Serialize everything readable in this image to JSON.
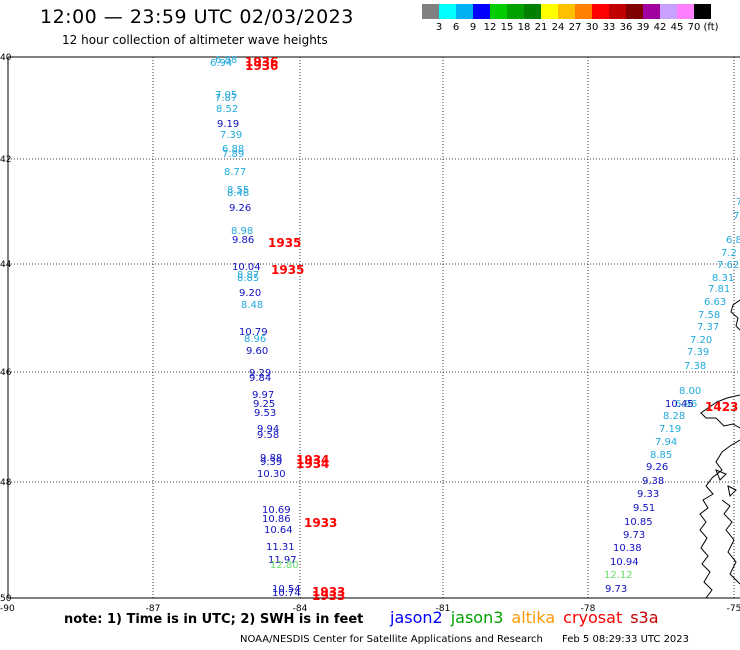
{
  "header": {
    "title": "12:00 — 23:59 UTC 02/03/2023",
    "subtitle": "12 hour collection of altimeter wave heights"
  },
  "legend": {
    "colors": [
      "#808080",
      "#00ffff",
      "#00b0f0",
      "#0000ff",
      "#00cc00",
      "#00a000",
      "#008000",
      "#ffff00",
      "#ffc000",
      "#ff8000",
      "#ff0000",
      "#c00000",
      "#800000",
      "#a000a0",
      "#c8a0ff",
      "#ff80ff",
      "#000000"
    ],
    "labels": [
      "3",
      "6",
      "9",
      "12",
      "15",
      "18",
      "21",
      "24",
      "27",
      "30",
      "33",
      "36",
      "39",
      "42",
      "45",
      "70",
      "(ft)"
    ]
  },
  "map": {
    "lat_labels": [
      "40",
      "42",
      "44",
      "46",
      "48",
      "50"
    ],
    "lon_labels": [
      "-87",
      "-84",
      "-81",
      "-78",
      "-75"
    ],
    "corner_label": "-90"
  },
  "readings": [
    {
      "v": "6.94",
      "c": "#22aadd"
    },
    {
      "v": "6.88",
      "c": "#22aadd"
    },
    {
      "v": "7.05",
      "c": "#22aadd"
    },
    {
      "v": "7.87",
      "c": "#22aadd"
    },
    {
      "v": "8.52",
      "c": "#22aadd"
    },
    {
      "v": "9.19",
      "c": "#1010c0"
    },
    {
      "v": "7.39",
      "c": "#22aadd"
    },
    {
      "v": "6.88",
      "c": "#22aadd"
    },
    {
      "v": "7.89",
      "c": "#22aadd"
    },
    {
      "v": "8.77",
      "c": "#22aadd"
    },
    {
      "v": "8.55",
      "c": "#22aadd"
    },
    {
      "v": "8.48",
      "c": "#22aadd"
    },
    {
      "v": "9.26",
      "c": "#1010c0"
    },
    {
      "v": "8.98",
      "c": "#22aadd"
    },
    {
      "v": "9.86",
      "c": "#1010c0"
    },
    {
      "v": "10.04",
      "c": "#1010c0"
    },
    {
      "v": "8.87",
      "c": "#22aadd"
    },
    {
      "v": "8.85",
      "c": "#22aadd"
    },
    {
      "v": "9.20",
      "c": "#1010c0"
    },
    {
      "v": "8.48",
      "c": "#22aadd"
    },
    {
      "v": "10.79",
      "c": "#1010c0"
    },
    {
      "v": "8.96",
      "c": "#22aadd"
    },
    {
      "v": "9.60",
      "c": "#1010c0"
    },
    {
      "v": "9.29",
      "c": "#1010c0"
    },
    {
      "v": "9.84",
      "c": "#1010c0"
    },
    {
      "v": "9.97",
      "c": "#1010c0"
    },
    {
      "v": "9.25",
      "c": "#1010c0"
    },
    {
      "v": "9.53",
      "c": "#1010c0"
    },
    {
      "v": "9.94",
      "c": "#1010c0"
    },
    {
      "v": "9.58",
      "c": "#1010c0"
    },
    {
      "v": "9.88",
      "c": "#1010c0"
    },
    {
      "v": "9.39",
      "c": "#1010c0"
    },
    {
      "v": "10.30",
      "c": "#1010c0"
    },
    {
      "v": "10.69",
      "c": "#1010c0"
    },
    {
      "v": "10.86",
      "c": "#1010c0"
    },
    {
      "v": "10.64",
      "c": "#1010c0"
    },
    {
      "v": "11.31",
      "c": "#1010c0"
    },
    {
      "v": "11.97",
      "c": "#1010c0"
    },
    {
      "v": "12.80",
      "c": "#66dd66"
    },
    {
      "v": "10.54",
      "c": "#1010c0"
    },
    {
      "v": "10.74",
      "c": "#1010c0"
    },
    {
      "v": "7",
      "c": "#22aadd"
    },
    {
      "v": "7",
      "c": "#22aadd"
    },
    {
      "v": "6.8",
      "c": "#22aadd"
    },
    {
      "v": "7.2",
      "c": "#22aadd"
    },
    {
      "v": "7.62",
      "c": "#22aadd"
    },
    {
      "v": "8.31",
      "c": "#22aadd"
    },
    {
      "v": "7.81",
      "c": "#22aadd"
    },
    {
      "v": "6.63",
      "c": "#22aadd"
    },
    {
      "v": "7.58",
      "c": "#22aadd"
    },
    {
      "v": "7.37",
      "c": "#22aadd"
    },
    {
      "v": "7.20",
      "c": "#22aadd"
    },
    {
      "v": "7.39",
      "c": "#22aadd"
    },
    {
      "v": "7.38",
      "c": "#22aadd"
    },
    {
      "v": "8.00",
      "c": "#22aadd"
    },
    {
      "v": "6.96",
      "c": "#22aadd"
    },
    {
      "v": "10.45",
      "c": "#1010c0"
    },
    {
      "v": "8.28",
      "c": "#22aadd"
    },
    {
      "v": "7.19",
      "c": "#22aadd"
    },
    {
      "v": "7.94",
      "c": "#22aadd"
    },
    {
      "v": "8.85",
      "c": "#22aadd"
    },
    {
      "v": "9.26",
      "c": "#1010c0"
    },
    {
      "v": "9.38",
      "c": "#1010c0"
    },
    {
      "v": "9.33",
      "c": "#1010c0"
    },
    {
      "v": "9.51",
      "c": "#1010c0"
    },
    {
      "v": "10.85",
      "c": "#1010c0"
    },
    {
      "v": "9.73",
      "c": "#1010c0"
    },
    {
      "v": "10.38",
      "c": "#1010c0"
    },
    {
      "v": "10.94",
      "c": "#1010c0"
    },
    {
      "v": "12.12",
      "c": "#66dd66"
    },
    {
      "v": "9.73",
      "c": "#1010c0"
    }
  ],
  "times": [
    {
      "v": "1936"
    },
    {
      "v": "1936"
    },
    {
      "v": "1935"
    },
    {
      "v": "1935"
    },
    {
      "v": "1934"
    },
    {
      "v": "1934"
    },
    {
      "v": "1933"
    },
    {
      "v": "1933"
    },
    {
      "v": "1933"
    },
    {
      "v": "1423"
    }
  ],
  "notes": {
    "note": "note:  1) Time is in UTC;  2) SWH is in feet",
    "satellites": [
      {
        "name": "jason2",
        "color": "#0000ff"
      },
      {
        "name": "jason3",
        "color": "#00a000"
      },
      {
        "name": "altika",
        "color": "#ff9900"
      },
      {
        "name": "cryosat",
        "color": "#ff0000"
      },
      {
        "name": "s3a",
        "color": "#c00000"
      }
    ],
    "credit": "NOAA/NESDIS Center for Satellite Applications and Research",
    "timestamp": "Feb  5 08:29:33 UTC 2023"
  }
}
